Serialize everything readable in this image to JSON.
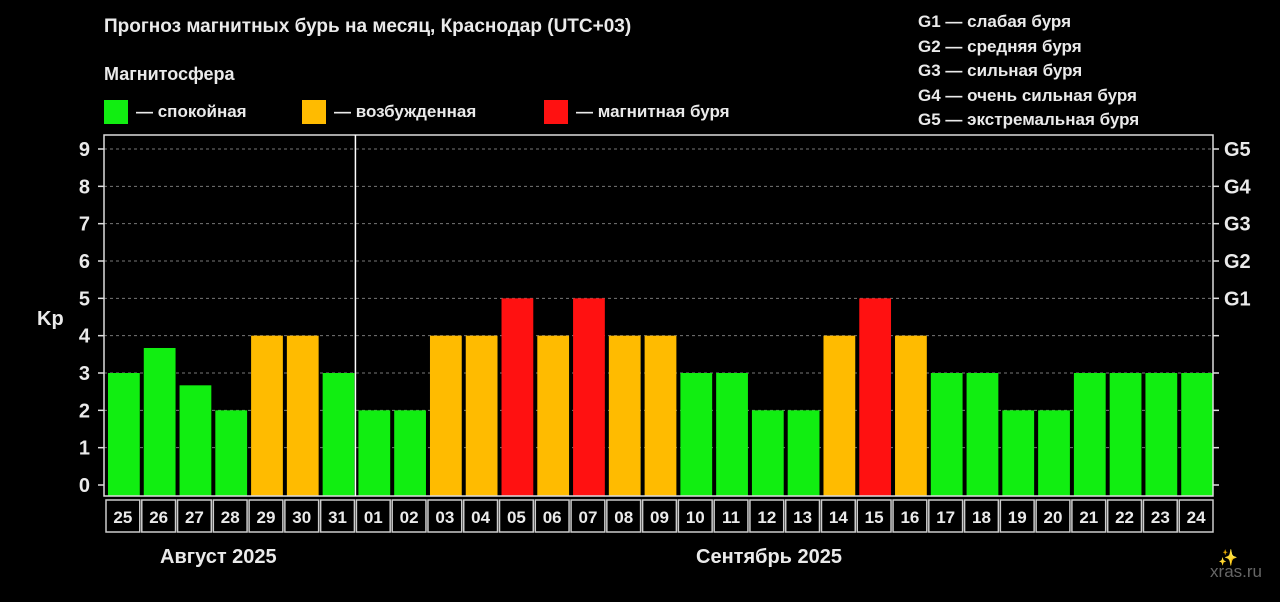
{
  "title": "Прогноз магнитных бурь на месяц, Краснодар (UTC+03)",
  "subtitle": "Магнитосфера",
  "legend": {
    "calm": {
      "label": "— спокойная",
      "color": "#11ee11"
    },
    "excited": {
      "label": "— возбужденная",
      "color": "#ffbb00"
    },
    "storm": {
      "label": "— магнитная буря",
      "color": "#ff1111"
    }
  },
  "g_legend": [
    "G1 — слабая буря",
    "G2 — средняя буря",
    "G3 — сильная буря",
    "G4 — очень сильная буря",
    "G5 — экстремальная буря"
  ],
  "months": {
    "august": "Август 2025",
    "september": "Сентябрь 2025"
  },
  "watermark": "xras.ru",
  "chart_data": {
    "type": "bar",
    "ylabel": "Kp",
    "ylim": [
      0,
      9
    ],
    "yticks": [
      "0",
      "1",
      "2",
      "3",
      "4",
      "5",
      "6",
      "7",
      "8",
      "9"
    ],
    "right_ticks": [
      {
        "kp": 5,
        "label": "G1"
      },
      {
        "kp": 6,
        "label": "G2"
      },
      {
        "kp": 7,
        "label": "G3"
      },
      {
        "kp": 8,
        "label": "G4"
      },
      {
        "kp": 9,
        "label": "G5"
      }
    ],
    "categories": [
      "25",
      "26",
      "27",
      "28",
      "29",
      "30",
      "31",
      "01",
      "02",
      "03",
      "04",
      "05",
      "06",
      "07",
      "08",
      "09",
      "10",
      "11",
      "12",
      "13",
      "14",
      "15",
      "16",
      "17",
      "18",
      "19",
      "20",
      "21",
      "22",
      "23",
      "24"
    ],
    "values": [
      3,
      3.67,
      2.67,
      2,
      4,
      4,
      3,
      2,
      2,
      4,
      4,
      5,
      4,
      5,
      4,
      4,
      3,
      3,
      2,
      2,
      4,
      5,
      4,
      3,
      3,
      2,
      2,
      3,
      3,
      3,
      3
    ],
    "status": [
      "calm",
      "calm",
      "calm",
      "calm",
      "excited",
      "excited",
      "calm",
      "calm",
      "calm",
      "excited",
      "excited",
      "storm",
      "excited",
      "storm",
      "excited",
      "excited",
      "calm",
      "calm",
      "calm",
      "calm",
      "excited",
      "storm",
      "excited",
      "calm",
      "calm",
      "calm",
      "calm",
      "calm",
      "calm",
      "calm",
      "calm"
    ],
    "grid": true
  }
}
